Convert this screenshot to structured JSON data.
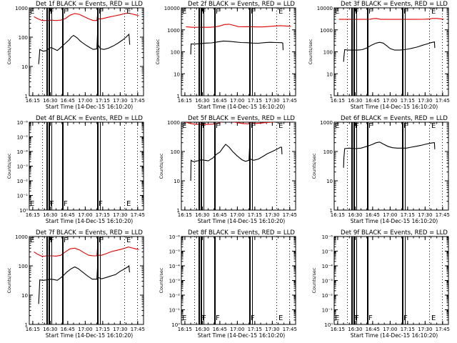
{
  "chart_data": [
    {
      "type": "line",
      "title": "Det 1f BLACK = Events, RED = LLD",
      "xlabel": "Start Time (14-Dec-15 16:10:20)",
      "ylabel": "Counts/sec",
      "yscale": "log",
      "ylim": [
        1,
        1000
      ],
      "yticks": [
        "1",
        "10",
        "100",
        "1000"
      ],
      "xlim_minutes": [
        972,
        1070
      ],
      "xticks": [
        "16:15",
        "16:30",
        "16:45",
        "17:00",
        "17:15",
        "17:30",
        "17:45"
      ],
      "xtick_minutes": [
        975,
        990,
        1005,
        1020,
        1035,
        1050,
        1065
      ],
      "empty": false,
      "series": [
        {
          "name": "Events",
          "color": "#000000",
          "x": [
            980,
            980.5,
            981,
            984,
            987,
            989,
            991,
            993,
            996,
            1000,
            1003,
            1006,
            1008,
            1010,
            1013,
            1016,
            1020,
            1024,
            1027,
            1030,
            1030.5,
            1031,
            1033,
            1036,
            1040,
            1044,
            1048,
            1052,
            1055,
            1057.5,
            1058,
            1058.2
          ],
          "y": [
            12,
            20,
            38,
            33,
            35,
            42,
            44,
            40,
            35,
            48,
            62,
            80,
            100,
            115,
            95,
            72,
            55,
            44,
            38,
            40,
            120,
            55,
            40,
            38,
            42,
            50,
            62,
            80,
            100,
            125,
            70,
            55
          ]
        },
        {
          "name": "LLD",
          "color": "#e00000",
          "x": [
            976,
            979,
            983,
            987,
            991,
            995,
            999,
            1003,
            1007,
            1011,
            1015,
            1019,
            1023,
            1027,
            1030,
            1030.5,
            1031,
            1034,
            1038,
            1042,
            1046,
            1050,
            1054,
            1057,
            1060,
            1063,
            1066
          ],
          "y": [
            500,
            430,
            370,
            370,
            380,
            370,
            380,
            430,
            560,
            640,
            600,
            500,
            420,
            370,
            370,
            540,
            420,
            420,
            460,
            500,
            540,
            580,
            640,
            660,
            620,
            580,
            540
          ]
        }
      ]
    },
    {
      "type": "line",
      "title": "Det 2f BLACK = Events, RED = LLD",
      "xlabel": "Start Time (14-Dec-15 16:10:20)",
      "ylabel": "Counts/sec",
      "yscale": "log",
      "ylim": [
        1,
        10000
      ],
      "yticks": [
        "1",
        "10",
        "100",
        "1000",
        "10000"
      ],
      "xlim_minutes": [
        972,
        1070
      ],
      "xticks": [
        "16:15",
        "16:30",
        "16:45",
        "17:00",
        "17:15",
        "17:30",
        "17:45"
      ],
      "xtick_minutes": [
        975,
        990,
        1005,
        1020,
        1035,
        1050,
        1065
      ],
      "empty": false,
      "series": [
        {
          "name": "Events",
          "color": "#000000",
          "x": [
            980,
            980.3,
            983,
            988,
            993,
            998,
            1003,
            1008,
            1013,
            1018,
            1023,
            1028,
            1033,
            1038,
            1043,
            1048,
            1053,
            1058,
            1059,
            1059.3
          ],
          "y": [
            75,
            230,
            225,
            235,
            250,
            255,
            280,
            310,
            300,
            280,
            265,
            260,
            250,
            245,
            260,
            270,
            265,
            260,
            250,
            120
          ]
        },
        {
          "name": "LLD",
          "color": "#e00000",
          "x": [
            976,
            981,
            986,
            991,
            996,
            1001,
            1005,
            1009,
            1013,
            1017,
            1021,
            1025,
            1029,
            1033,
            1037,
            1041,
            1045,
            1049,
            1053,
            1057,
            1061,
            1066
          ],
          "y": [
            1380,
            1300,
            1300,
            1300,
            1300,
            1350,
            1500,
            1750,
            1800,
            1600,
            1400,
            1380,
            1400,
            1380,
            1350,
            1350,
            1400,
            1450,
            1500,
            1550,
            1500,
            1450
          ]
        }
      ]
    },
    {
      "type": "line",
      "title": "Det 3f BLACK = Events, RED = LLD",
      "xlabel": "Start Time (14-Dec-15 16:10:20)",
      "ylabel": "Counts/sec",
      "yscale": "log",
      "ylim": [
        1,
        10000
      ],
      "yticks": [
        "1",
        "10",
        "100",
        "1000",
        "10000"
      ],
      "xlim_minutes": [
        972,
        1070
      ],
      "xticks": [
        "16:15",
        "16:30",
        "16:45",
        "17:00",
        "17:15",
        "17:30",
        "17:45"
      ],
      "xtick_minutes": [
        975,
        990,
        1005,
        1020,
        1035,
        1050,
        1065
      ],
      "empty": false,
      "series": [
        {
          "name": "Events",
          "color": "#000000",
          "x": [
            980,
            980.4,
            981,
            984,
            988,
            992,
            996,
            1000,
            1004,
            1008,
            1011,
            1014,
            1017,
            1020,
            1024,
            1028,
            1032,
            1036,
            1040,
            1044,
            1048,
            1052,
            1055,
            1058,
            1058.3
          ],
          "y": [
            35,
            60,
            125,
            120,
            120,
            120,
            125,
            150,
            200,
            250,
            270,
            250,
            190,
            140,
            120,
            120,
            125,
            135,
            150,
            170,
            200,
            230,
            260,
            280,
            150
          ]
        },
        {
          "name": "LLD",
          "color": "#e00000",
          "x": [
            976,
            985,
            995,
            1003,
            1005,
            1008,
            1012,
            1020,
            1030,
            1040,
            1050,
            1054,
            1056,
            1060,
            1066
          ],
          "y": [
            3000,
            3000,
            3000,
            3050,
            3200,
            3300,
            3000,
            3000,
            3000,
            3000,
            3050,
            3100,
            3300,
            3300,
            3050
          ]
        }
      ]
    },
    {
      "type": "line",
      "title": "Det 4f BLACK = Events, RED = LLD",
      "xlabel": "Start Time (14-Dec-15 16:10:20)",
      "ylabel": "Counts/sec",
      "yscale": "log",
      "ylim": [
        1,
        1000000
      ],
      "yticks": [
        "10⁰",
        "10⁻¹",
        "10⁻²",
        "10⁻³",
        "10⁻⁴",
        "10⁻⁵",
        "10⁻⁶"
      ],
      "xlim_minutes": [
        972,
        1070
      ],
      "xticks": [
        "16:15",
        "16:30",
        "16:45",
        "17:00",
        "17:15",
        "17:30",
        "17:45"
      ],
      "xtick_minutes": [
        975,
        990,
        1005,
        1020,
        1035,
        1050,
        1065
      ],
      "empty": true,
      "series": []
    },
    {
      "type": "line",
      "title": "Det 5f BLACK = Events, RED = LLD",
      "xlabel": "Start Time (14-Dec-15 16:10:20)",
      "ylabel": "Counts/sec",
      "yscale": "log",
      "ylim": [
        1,
        1000
      ],
      "yticks": [
        "1",
        "10",
        "100",
        "1000"
      ],
      "xlim_minutes": [
        972,
        1070
      ],
      "xticks": [
        "16:15",
        "16:30",
        "16:45",
        "17:00",
        "17:15",
        "17:30",
        "17:45"
      ],
      "xtick_minutes": [
        975,
        990,
        1005,
        1020,
        1035,
        1050,
        1065
      ],
      "empty": false,
      "series": [
        {
          "name": "Events",
          "color": "#000000",
          "x": [
            980,
            980.3,
            982,
            986,
            989,
            992,
            995,
            999,
            1002,
            1005,
            1008,
            1010,
            1013,
            1016,
            1020,
            1024,
            1027,
            1030,
            1030.5,
            1031,
            1034,
            1038,
            1042,
            1046,
            1050,
            1054,
            1057,
            1058,
            1058.3
          ],
          "y": [
            10,
            50,
            45,
            48,
            52,
            50,
            48,
            60,
            80,
            95,
            140,
            175,
            140,
            100,
            70,
            52,
            46,
            50,
            140,
            55,
            50,
            55,
            68,
            85,
            100,
            120,
            140,
            140,
            80
          ]
        },
        {
          "name": "LLD",
          "color": "#e00000",
          "x": [
            976,
            980,
            985,
            990,
            995,
            1000,
            1003,
            1006,
            1010,
            1015,
            1020,
            1025,
            1030,
            1030.5,
            1035,
            1040,
            1045,
            1050,
            1055,
            1060,
            1066
          ],
          "y": [
            1000,
            900,
            850,
            850,
            850,
            860,
            900,
            1000,
            1100,
            1050,
            960,
            900,
            880,
            1000,
            900,
            930,
            970,
            1000,
            1050,
            1050,
            1000
          ]
        }
      ]
    },
    {
      "type": "line",
      "title": "Det 6f BLACK = Events, RED = LLD",
      "xlabel": "Start Time (14-Dec-15 16:10:20)",
      "ylabel": "Counts/sec",
      "yscale": "log",
      "ylim": [
        1,
        1000
      ],
      "yticks": [
        "1",
        "10",
        "100",
        "1000"
      ],
      "xlim_minutes": [
        972,
        1070
      ],
      "xticks": [
        "16:15",
        "16:30",
        "16:45",
        "17:00",
        "17:15",
        "17:30",
        "17:45"
      ],
      "xtick_minutes": [
        975,
        990,
        1005,
        1020,
        1035,
        1050,
        1065
      ],
      "empty": false,
      "series": [
        {
          "name": "Events",
          "color": "#000000",
          "x": [
            980,
            980.3,
            981,
            985,
            990,
            995,
            1000,
            1004,
            1008,
            1011,
            1014,
            1018,
            1022,
            1026,
            1030,
            1034,
            1038,
            1042,
            1046,
            1050,
            1054,
            1057,
            1058,
            1058.3
          ],
          "y": [
            28,
            60,
            125,
            130,
            125,
            130,
            150,
            170,
            200,
            210,
            180,
            150,
            135,
            130,
            130,
            130,
            140,
            150,
            160,
            175,
            190,
            200,
            200,
            120
          ]
        }
      ]
    },
    {
      "type": "line",
      "title": "Det 7f BLACK = Events, RED = LLD",
      "xlabel": "Start Time (14-Dec-15 16:10:20)",
      "ylabel": "Counts/sec",
      "yscale": "log",
      "ylim": [
        1,
        1000
      ],
      "yticks": [
        "1",
        "10",
        "100",
        "1000"
      ],
      "xlim_minutes": [
        972,
        1070
      ],
      "xticks": [
        "16:15",
        "16:30",
        "16:45",
        "17:00",
        "17:15",
        "17:30",
        "17:45"
      ],
      "xtick_minutes": [
        975,
        990,
        1005,
        1020,
        1035,
        1050,
        1065
      ],
      "empty": false,
      "series": [
        {
          "name": "Events",
          "color": "#000000",
          "x": [
            980,
            980.5,
            981,
            984,
            987,
            990,
            993,
            996,
            1000,
            1004,
            1008,
            1011,
            1014,
            1018,
            1022,
            1026,
            1030,
            1030.5,
            1031,
            1034,
            1038,
            1042,
            1046,
            1050,
            1054,
            1057,
            1057.5,
            1058
          ],
          "y": [
            5,
            12,
            33,
            32,
            33,
            35,
            34,
            32,
            42,
            60,
            80,
            92,
            80,
            60,
            45,
            35,
            35,
            85,
            40,
            36,
            40,
            45,
            50,
            65,
            80,
            95,
            100,
            60
          ]
        },
        {
          "name": "LLD",
          "color": "#e00000",
          "x": [
            976,
            979,
            983,
            987,
            991,
            995,
            999,
            1003,
            1007,
            1011,
            1015,
            1019,
            1023,
            1027,
            1030,
            1030.5,
            1031,
            1034,
            1038,
            1042,
            1046,
            1050,
            1054,
            1057,
            1060,
            1063,
            1066
          ],
          "y": [
            300,
            250,
            210,
            220,
            220,
            215,
            230,
            300,
            380,
            400,
            350,
            280,
            230,
            220,
            220,
            380,
            230,
            230,
            260,
            300,
            330,
            360,
            400,
            440,
            410,
            380,
            360
          ]
        }
      ]
    },
    {
      "type": "line",
      "title": "Det 8f BLACK = Events, RED = LLD",
      "xlabel": "Start Time (14-Dec-15 16:10:20)",
      "ylabel": "Counts/sec",
      "yscale": "log",
      "ylim": [
        1,
        1000000
      ],
      "yticks": [
        "10⁰",
        "10⁻¹",
        "10⁻²",
        "10⁻³",
        "10⁻⁴",
        "10⁻⁵",
        "10⁻⁶"
      ],
      "xlim_minutes": [
        972,
        1070
      ],
      "xticks": [
        "16:15",
        "16:30",
        "16:45",
        "17:00",
        "17:15",
        "17:30",
        "17:45"
      ],
      "xtick_minutes": [
        975,
        990,
        1005,
        1020,
        1035,
        1050,
        1065
      ],
      "empty": true,
      "series": []
    },
    {
      "type": "line",
      "title": "Det 9f BLACK = Events, RED = LLD",
      "xlabel": "Start Time (14-Dec-15 16:10:20)",
      "ylabel": "Counts/sec",
      "yscale": "log",
      "ylim": [
        1,
        1000000
      ],
      "yticks": [
        "10⁰",
        "10⁻¹",
        "10⁻²",
        "10⁻³",
        "10⁻⁴",
        "10⁻⁵",
        "10⁻⁶"
      ],
      "xlim_minutes": [
        972,
        1070
      ],
      "xticks": [
        "16:15",
        "16:30",
        "16:45",
        "17:00",
        "17:15",
        "17:30",
        "17:45"
      ],
      "xtick_minutes": [
        975,
        990,
        1005,
        1020,
        1035,
        1050,
        1065
      ],
      "empty": true,
      "series": []
    }
  ],
  "markers": {
    "solid_minutes": [
      986.7,
      987.3,
      988.5,
      989.1,
      991.0,
      1000.2,
      1000.8,
      1030.2,
      1030.8,
      1032.6
    ],
    "dotted_minutes": [
      983.0,
      1053.5,
      1064.5
    ],
    "letters": [
      {
        "label": "E",
        "minute": 972.3
      },
      {
        "label": "F",
        "minute": 987.5
      },
      {
        "label": "F",
        "minute": 989.3
      },
      {
        "label": "F",
        "minute": 1001.0
      },
      {
        "label": "F",
        "minute": 1031.0
      },
      {
        "label": "E",
        "minute": 1054.5
      }
    ]
  }
}
